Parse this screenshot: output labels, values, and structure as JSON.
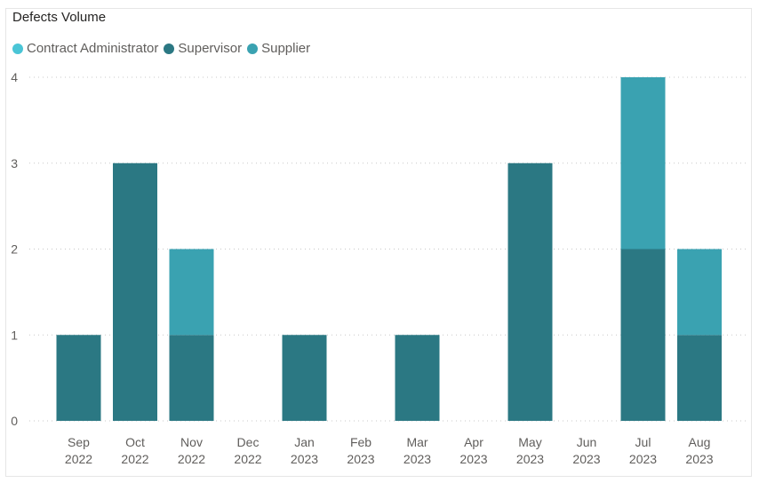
{
  "chart_data": {
    "type": "bar",
    "stacked": true,
    "title": "Defects Volume",
    "categories": [
      [
        "Sep",
        "2022"
      ],
      [
        "Oct",
        "2022"
      ],
      [
        "Nov",
        "2022"
      ],
      [
        "Dec",
        "2022"
      ],
      [
        "Jan",
        "2023"
      ],
      [
        "Feb",
        "2023"
      ],
      [
        "Mar",
        "2023"
      ],
      [
        "Apr",
        "2023"
      ],
      [
        "May",
        "2023"
      ],
      [
        "Jun",
        "2023"
      ],
      [
        "Jul",
        "2023"
      ],
      [
        "Aug",
        "2023"
      ]
    ],
    "series": [
      {
        "name": "Contract Administrator",
        "color": "#4ac5d6",
        "values": [
          0,
          0,
          0,
          0,
          0,
          0,
          0,
          0,
          0,
          0,
          0,
          0
        ]
      },
      {
        "name": "Supervisor",
        "color": "#2b7883",
        "values": [
          1,
          3,
          1,
          0,
          1,
          0,
          1,
          0,
          3,
          0,
          2,
          1
        ]
      },
      {
        "name": "Supplier",
        "color": "#3aa2b1",
        "values": [
          0,
          0,
          1,
          0,
          0,
          0,
          0,
          0,
          0,
          0,
          2,
          1
        ]
      }
    ],
    "ylim": [
      0,
      4
    ],
    "yticks": [
      0,
      1,
      2,
      3,
      4
    ],
    "grid": true,
    "legend_position": "top-left"
  }
}
